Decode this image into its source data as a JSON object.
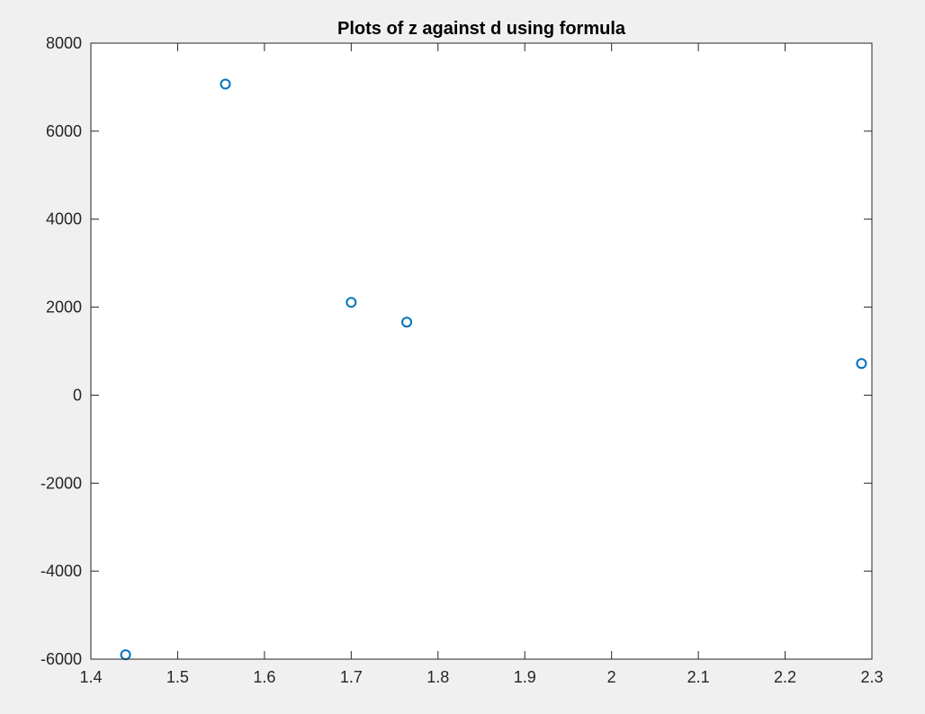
{
  "chart_data": {
    "type": "scatter",
    "title": "Plots of z against d using formula",
    "xlabel": "",
    "ylabel": "",
    "xlim": [
      1.4,
      2.3
    ],
    "ylim": [
      -6000,
      8000
    ],
    "xticks": [
      1.4,
      1.5,
      1.6,
      1.7,
      1.8,
      1.9,
      2,
      2.1,
      2.2,
      2.3
    ],
    "xtick_labels": [
      "1.4",
      "1.5",
      "1.6",
      "1.7",
      "1.8",
      "1.9",
      "2",
      "2.1",
      "2.2",
      "2.3"
    ],
    "yticks": [
      -6000,
      -4000,
      -2000,
      0,
      2000,
      4000,
      6000,
      8000
    ],
    "ytick_labels": [
      "-6000",
      "-4000",
      "-2000",
      "0",
      "2000",
      "4000",
      "6000",
      "8000"
    ],
    "grid": false,
    "marker": "circle-open",
    "color": "#0072BD",
    "series": [
      {
        "x": [
          1.44,
          1.555,
          1.7,
          1.764,
          2.288
        ],
        "y": [
          -5900,
          7070,
          2110,
          1660,
          720
        ]
      }
    ]
  }
}
